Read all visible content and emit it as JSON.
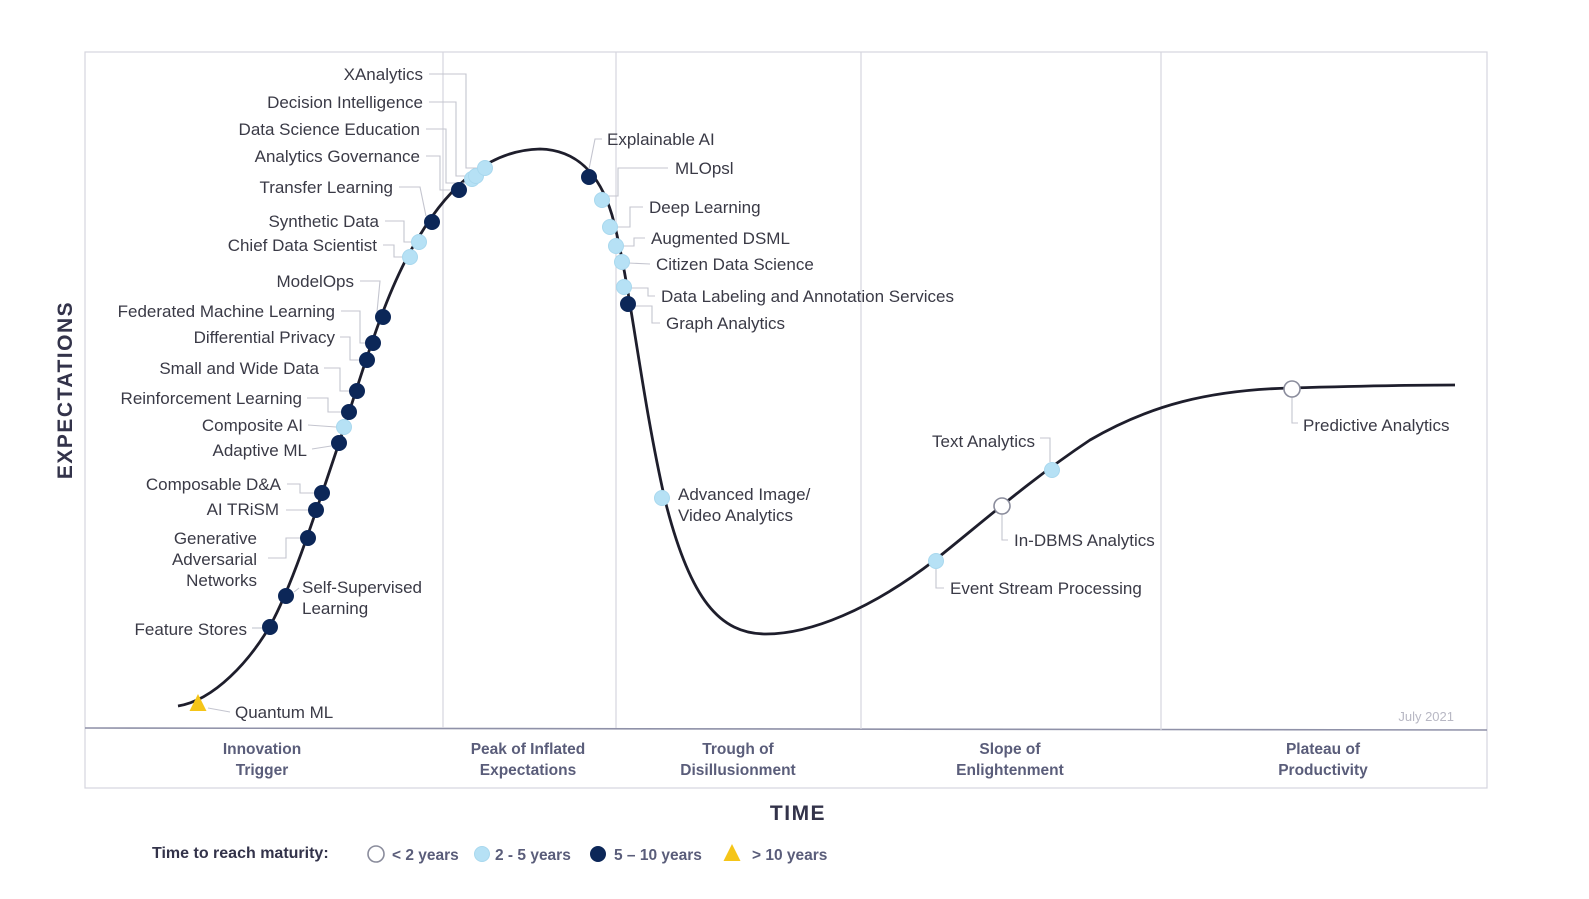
{
  "chart_data": {
    "type": "hype-cycle",
    "title": "",
    "date": "July 2021",
    "xlabel": "TIME",
    "ylabel": "EXPECTATIONS",
    "phases": [
      {
        "name": "innovation-trigger",
        "lines": [
          "Innovation",
          "Trigger"
        ]
      },
      {
        "name": "peak",
        "lines": [
          "Peak of Inflated",
          "Expectations"
        ]
      },
      {
        "name": "trough",
        "lines": [
          "Trough of",
          "Disillusionment"
        ]
      },
      {
        "name": "slope",
        "lines": [
          "Slope of",
          "Enlightenment"
        ]
      },
      {
        "name": "plateau",
        "lines": [
          "Plateau of",
          "Productivity"
        ]
      }
    ],
    "legend": {
      "title": "Time to reach maturity:",
      "items": [
        {
          "key": "lt2",
          "label": "< 2 years"
        },
        {
          "key": "2to5",
          "label": "2 - 5 years"
        },
        {
          "key": "5to10",
          "label": "5 – 10 years"
        },
        {
          "key": "gt10",
          "label": "> 10 years"
        }
      ]
    },
    "colors": {
      "lt2": "#ffffff",
      "2to5": "#b6e1f5",
      "5to10": "#0c2758",
      "gt10": "#f5c518",
      "curve": "#1e1e2c",
      "grid": "#d6d6de"
    },
    "technologies": [
      {
        "name": "quantum-ml",
        "lines": [
          "Quantum ML"
        ],
        "maturity": "gt10"
      },
      {
        "name": "feature-stores",
        "lines": [
          "Feature Stores"
        ],
        "maturity": "5to10"
      },
      {
        "name": "self-supervised-learning",
        "lines": [
          "Self-Supervised",
          "Learning"
        ],
        "maturity": "5to10"
      },
      {
        "name": "generative-adversarial-networks",
        "lines": [
          "Generative",
          "Adversarial",
          "Networks"
        ],
        "maturity": "5to10"
      },
      {
        "name": "ai-trism",
        "lines": [
          "AI TRiSM"
        ],
        "maturity": "5to10"
      },
      {
        "name": "composable-da",
        "lines": [
          "Composable D&A"
        ],
        "maturity": "5to10"
      },
      {
        "name": "adaptive-ml",
        "lines": [
          "Adaptive ML"
        ],
        "maturity": "5to10"
      },
      {
        "name": "composite-ai",
        "lines": [
          "Composite AI"
        ],
        "maturity": "2to5"
      },
      {
        "name": "reinforcement-learning",
        "lines": [
          "Reinforcement Learning"
        ],
        "maturity": "5to10"
      },
      {
        "name": "small-and-wide-data",
        "lines": [
          "Small and Wide Data"
        ],
        "maturity": "5to10"
      },
      {
        "name": "differential-privacy",
        "lines": [
          "Differential Privacy"
        ],
        "maturity": "5to10"
      },
      {
        "name": "federated-machine-learning",
        "lines": [
          "Federated Machine Learning"
        ],
        "maturity": "5to10"
      },
      {
        "name": "modelops",
        "lines": [
          "ModelOps"
        ],
        "maturity": "5to10"
      },
      {
        "name": "chief-data-scientist",
        "lines": [
          "Chief Data Scientist"
        ],
        "maturity": "2to5"
      },
      {
        "name": "synthetic-data",
        "lines": [
          "Synthetic Data"
        ],
        "maturity": "2to5"
      },
      {
        "name": "transfer-learning",
        "lines": [
          "Transfer Learning"
        ],
        "maturity": "5to10"
      },
      {
        "name": "analytics-governance",
        "lines": [
          "Analytics Governance"
        ],
        "maturity": "5to10"
      },
      {
        "name": "data-science-education",
        "lines": [
          "Data Science Education"
        ],
        "maturity": "2to5"
      },
      {
        "name": "decision-intelligence",
        "lines": [
          "Decision Intelligence"
        ],
        "maturity": "2to5"
      },
      {
        "name": "xanalytics",
        "lines": [
          "XAnalytics"
        ],
        "maturity": "2to5"
      },
      {
        "name": "explainable-ai",
        "lines": [
          "Explainable AI"
        ],
        "maturity": "5to10"
      },
      {
        "name": "mlops",
        "lines": [
          "MLOpsl"
        ],
        "maturity": "2to5"
      },
      {
        "name": "deep-learning",
        "lines": [
          "Deep Learning"
        ],
        "maturity": "2to5"
      },
      {
        "name": "augmented-dsml",
        "lines": [
          "Augmented DSML"
        ],
        "maturity": "2to5"
      },
      {
        "name": "citizen-data-science",
        "lines": [
          "Citizen Data Science"
        ],
        "maturity": "2to5"
      },
      {
        "name": "data-labeling-and-annotation-services",
        "lines": [
          "Data Labeling and Annotation Services"
        ],
        "maturity": "2to5"
      },
      {
        "name": "graph-analytics",
        "lines": [
          "Graph Analytics"
        ],
        "maturity": "5to10"
      },
      {
        "name": "advanced-image-video-analytics",
        "lines": [
          "Advanced Image/",
          "Video Analytics"
        ],
        "maturity": "2to5"
      },
      {
        "name": "event-stream-processing",
        "lines": [
          "Event Stream Processing"
        ],
        "maturity": "2to5"
      },
      {
        "name": "in-dbms-analytics",
        "lines": [
          "In-DBMS Analytics"
        ],
        "maturity": "lt2"
      },
      {
        "name": "text-analytics",
        "lines": [
          "Text Analytics"
        ],
        "maturity": "2to5"
      },
      {
        "name": "predictive-analytics",
        "lines": [
          "Predictive Analytics"
        ],
        "maturity": "lt2"
      }
    ]
  }
}
